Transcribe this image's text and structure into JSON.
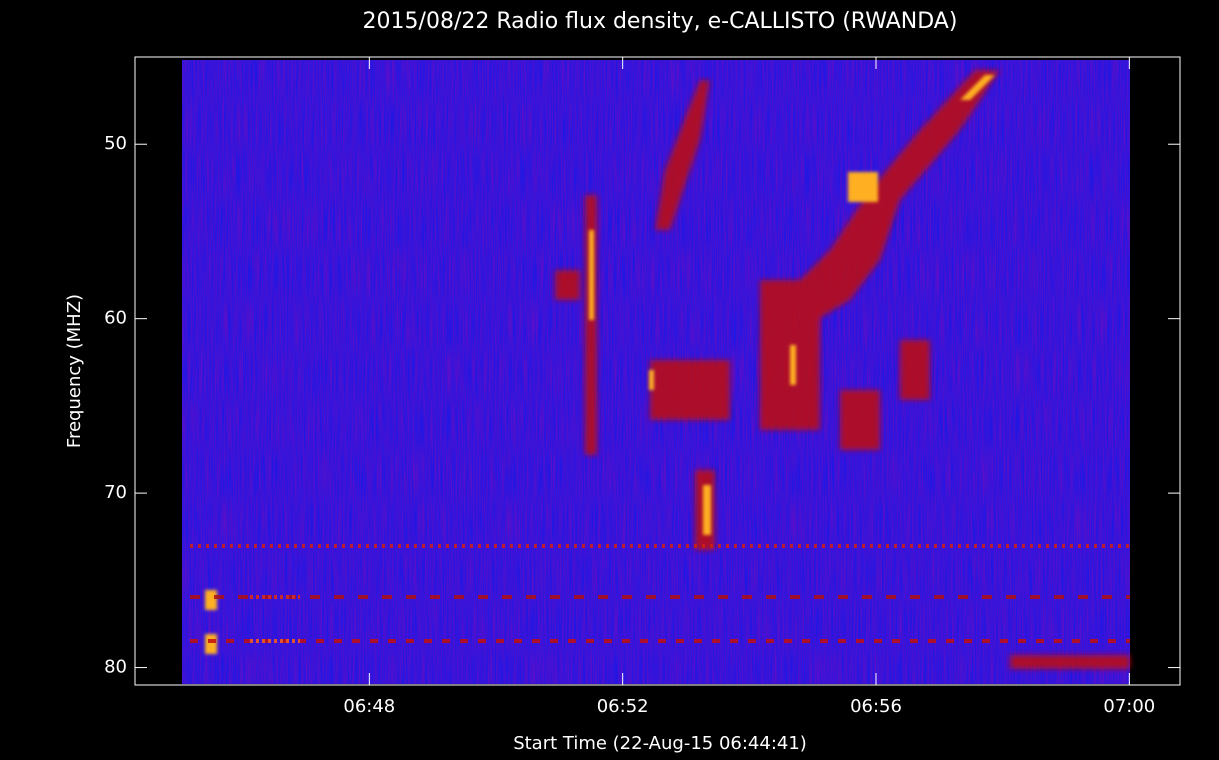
{
  "chart_data": {
    "type": "spectrogram",
    "title": "2015/08/22  Radio flux density, e-CALLISTO (RWANDA)",
    "x_label": "Start Time (22-Aug-15 06:44:41)",
    "y_label": "Frequency (MHZ)",
    "xlim": [
      404.3,
      420.8
    ],
    "xticks": [
      {
        "value": 408,
        "label": "06:48"
      },
      {
        "value": 412,
        "label": "06:52"
      },
      {
        "value": 416,
        "label": "06:56"
      },
      {
        "value": 420,
        "label": "07:00"
      }
    ],
    "ylim": [
      45,
      81
    ],
    "y_inverted": true,
    "yticks": [
      50,
      60,
      70,
      80
    ]
  }
}
